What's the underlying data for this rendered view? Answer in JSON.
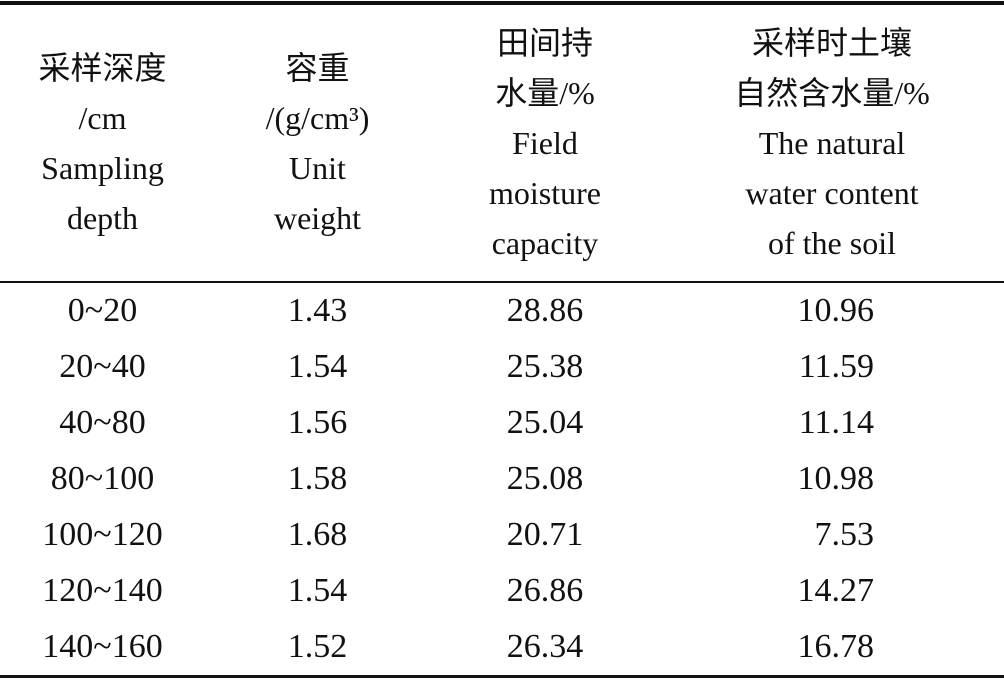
{
  "header": [
    [
      "采样深度",
      "/cm",
      "Sampling",
      "depth"
    ],
    [
      "容重",
      "/(g/cm³)",
      "Unit",
      "weight"
    ],
    [
      "田间持",
      "水量/%",
      "Field",
      "moisture",
      "capacity"
    ],
    [
      "采样时土壤",
      "自然含水量/%",
      "The natural",
      "water content",
      "of the soil"
    ]
  ],
  "rows": [
    [
      "0~20",
      "1.43",
      "28.86",
      "10.96"
    ],
    [
      "20~40",
      "1.54",
      "25.38",
      "11.59"
    ],
    [
      "40~80",
      "1.56",
      "25.04",
      "11.14"
    ],
    [
      "80~100",
      "1.58",
      "25.08",
      "10.98"
    ],
    [
      "100~120",
      "1.68",
      "20.71",
      "7.53"
    ],
    [
      "120~140",
      "1.54",
      "26.86",
      "14.27"
    ],
    [
      "140~160",
      "1.52",
      "26.34",
      "16.78"
    ]
  ]
}
